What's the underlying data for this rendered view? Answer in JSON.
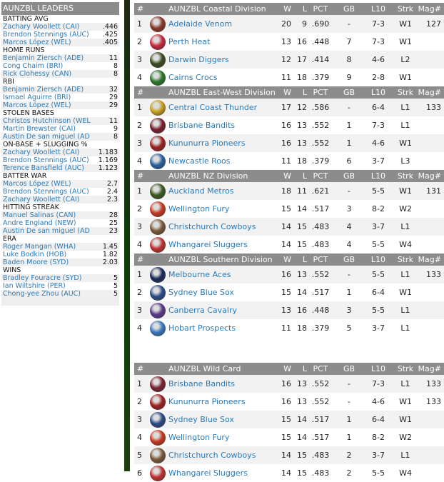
{
  "leaders": {
    "title": "AUNZBL LEADERS",
    "categories": [
      {
        "name": "BATTING AVG",
        "rows": [
          [
            "Zachary Woollett (CAI)",
            ".446"
          ],
          [
            "Brendon Stennings (AUC)",
            ".425"
          ],
          [
            "Marcos López (WEL)",
            ".405"
          ]
        ]
      },
      {
        "name": "HOME RUNS",
        "rows": [
          [
            "Benjamin Ziersch (ADE)",
            "11"
          ],
          [
            "Cong Chaim (BRI)",
            "8"
          ],
          [
            "Rick Clohessy (CAN)",
            "8"
          ]
        ]
      },
      {
        "name": "RBI",
        "rows": [
          [
            "Benjamin Ziersch (ADE)",
            "32"
          ],
          [
            "Ismael Aguirre (BRI)",
            "29"
          ],
          [
            "Marcos López (WEL)",
            "29"
          ]
        ]
      },
      {
        "name": "STOLEN BASES",
        "rows": [
          [
            "Christos Hutchinson (WEL",
            "11"
          ],
          [
            "Martin Brewster (CAI)",
            "9"
          ],
          [
            "Austin De san miguel (AD",
            "8"
          ]
        ]
      },
      {
        "name": "ON-BASE + SLUGGING %",
        "rows": [
          [
            "Zachary Woollett (CAI)",
            "1.183"
          ],
          [
            "Brendon Stennings (AUC)",
            "1.169"
          ],
          [
            "Terence Bansfield (AUC)",
            "1.123"
          ]
        ]
      },
      {
        "name": "BATTER WAR",
        "rows": [
          [
            "Marcos López (WEL)",
            "2.7"
          ],
          [
            "Brendon Stennings (AUC)",
            "2.4"
          ],
          [
            "Zachary Woollett (CAI)",
            "2.3"
          ]
        ]
      },
      {
        "name": "HITTING STREAK",
        "rows": [
          [
            "Manuel Salinas (CAN)",
            "28"
          ],
          [
            "Andre England (NEW)",
            "25"
          ],
          [
            "Austin De san miguel (AD",
            "23"
          ]
        ]
      },
      {
        "name": "ERA",
        "rows": [
          [
            "Roger Mangan (WHA)",
            "1.45"
          ],
          [
            "Luke Bodkin (HOB)",
            "1.82"
          ],
          [
            "Baden Moore (SYD)",
            "2.03"
          ]
        ]
      },
      {
        "name": "WINS",
        "rows": [
          [
            "Bradley Fouracre (SYD)",
            "5"
          ],
          [
            "Ian Wiltshire (PER)",
            "5"
          ],
          [
            "Chong-yee Zhou (AUC)",
            "5"
          ]
        ]
      }
    ]
  },
  "columns": {
    "rank": "#",
    "w": "W",
    "l": "L",
    "pct": "PCT",
    "gb": "GB",
    "l10": "L10",
    "strk": "Strk",
    "mag": "Mag#"
  },
  "divisions": [
    {
      "title": "AUNZBL Coastal Division",
      "teams": [
        {
          "rank": "1",
          "name": "Adelaide Venom",
          "w": "20",
          "l": "9",
          "pct": ".690",
          "gb": "-",
          "l10": "7-3",
          "strk": "W1",
          "mag": "127",
          "color": "#8a3a2a"
        },
        {
          "rank": "2",
          "name": "Perth Heat",
          "w": "13",
          "l": "16",
          "pct": ".448",
          "gb": "7",
          "l10": "7-3",
          "strk": "W1",
          "mag": "",
          "color": "#c8283a"
        },
        {
          "rank": "3",
          "name": "Darwin Diggers",
          "w": "12",
          "l": "17",
          "pct": ".414",
          "gb": "8",
          "l10": "4-6",
          "strk": "L2",
          "mag": "",
          "color": "#3a4a20"
        },
        {
          "rank": "4",
          "name": "Cairns Crocs",
          "w": "11",
          "l": "18",
          "pct": ".379",
          "gb": "9",
          "l10": "2-8",
          "strk": "W1",
          "mag": "",
          "color": "#2a7a2a"
        }
      ]
    },
    {
      "title": "AUNZBL East-West Division",
      "teams": [
        {
          "rank": "1",
          "name": "Central Coast Thunder",
          "w": "17",
          "l": "12",
          "pct": ".586",
          "gb": "-",
          "l10": "6-4",
          "strk": "L1",
          "mag": "133",
          "color": "#c8a020"
        },
        {
          "rank": "2",
          "name": "Brisbane Bandits",
          "w": "16",
          "l": "13",
          "pct": ".552",
          "gb": "1",
          "l10": "7-3",
          "strk": "L1",
          "mag": "",
          "color": "#7a2030"
        },
        {
          "rank": "3",
          "name": "Kununurra Pioneers",
          "w": "16",
          "l": "13",
          "pct": ".552",
          "gb": "1",
          "l10": "4-6",
          "strk": "W1",
          "mag": "",
          "color": "#a02020"
        },
        {
          "rank": "4",
          "name": "Newcastle Roos",
          "w": "11",
          "l": "18",
          "pct": ".379",
          "gb": "6",
          "l10": "3-7",
          "strk": "L3",
          "mag": "",
          "color": "#2a60a0"
        }
      ]
    },
    {
      "title": "AUNZBL NZ Division",
      "teams": [
        {
          "rank": "1",
          "name": "Auckland Metros",
          "w": "18",
          "l": "11",
          "pct": ".621",
          "gb": "-",
          "l10": "5-5",
          "strk": "W1",
          "mag": "131",
          "color": "#3a5a20"
        },
        {
          "rank": "2",
          "name": "Wellington Fury",
          "w": "15",
          "l": "14",
          "pct": ".517",
          "gb": "3",
          "l10": "8-2",
          "strk": "W2",
          "mag": "",
          "color": "#c83a20"
        },
        {
          "rank": "3",
          "name": "Christchurch Cowboys",
          "w": "14",
          "l": "15",
          "pct": ".483",
          "gb": "4",
          "l10": "3-7",
          "strk": "L1",
          "mag": "",
          "color": "#7a5a3a"
        },
        {
          "rank": "4",
          "name": "Whangarei Sluggers",
          "w": "14",
          "l": "15",
          "pct": ".483",
          "gb": "4",
          "l10": "5-5",
          "strk": "W4",
          "mag": "",
          "color": "#c03030"
        }
      ]
    },
    {
      "title": "AUNZBL Southern Division",
      "teams": [
        {
          "rank": "1",
          "name": "Melbourne Aces",
          "w": "16",
          "l": "13",
          "pct": ".552",
          "gb": "-",
          "l10": "5-5",
          "strk": "L1",
          "mag": "133",
          "color": "#1a2a5a"
        },
        {
          "rank": "2",
          "name": "Sydney Blue Sox",
          "w": "15",
          "l": "14",
          "pct": ".517",
          "gb": "1",
          "l10": "6-4",
          "strk": "W1",
          "mag": "",
          "color": "#2a4a8a"
        },
        {
          "rank": "3",
          "name": "Canberra Cavalry",
          "w": "13",
          "l": "16",
          "pct": ".448",
          "gb": "3",
          "l10": "5-5",
          "strk": "L1",
          "mag": "",
          "color": "#5a3a8a"
        },
        {
          "rank": "4",
          "name": "Hobart Prospects",
          "w": "11",
          "l": "18",
          "pct": ".379",
          "gb": "5",
          "l10": "3-7",
          "strk": "L1",
          "mag": "",
          "color": "#3a7ac0"
        }
      ]
    },
    {
      "title": "AUNZBL  Wild Card",
      "teams": [
        {
          "rank": "1",
          "name": "Brisbane Bandits",
          "w": "16",
          "l": "13",
          "pct": ".552",
          "gb": "-",
          "l10": "7-3",
          "strk": "L1",
          "mag": "133",
          "color": "#7a2030"
        },
        {
          "rank": "2",
          "name": "Kununurra Pioneers",
          "w": "16",
          "l": "13",
          "pct": ".552",
          "gb": "-",
          "l10": "4-6",
          "strk": "W1",
          "mag": "133",
          "color": "#a02020"
        },
        {
          "rank": "3",
          "name": "Sydney Blue Sox",
          "w": "15",
          "l": "14",
          "pct": ".517",
          "gb": "1",
          "l10": "6-4",
          "strk": "W1",
          "mag": "",
          "color": "#2a4a8a"
        },
        {
          "rank": "4",
          "name": "Wellington Fury",
          "w": "15",
          "l": "14",
          "pct": ".517",
          "gb": "1",
          "l10": "8-2",
          "strk": "W2",
          "mag": "",
          "color": "#c83a20"
        },
        {
          "rank": "5",
          "name": "Christchurch Cowboys",
          "w": "14",
          "l": "15",
          "pct": ".483",
          "gb": "2",
          "l10": "3-7",
          "strk": "L1",
          "mag": "",
          "color": "#7a5a3a"
        },
        {
          "rank": "6",
          "name": "Whangarei Sluggers",
          "w": "14",
          "l": "15",
          "pct": ".483",
          "gb": "2",
          "l10": "5-5",
          "strk": "W4",
          "mag": "",
          "color": "#c03030"
        }
      ]
    }
  ]
}
